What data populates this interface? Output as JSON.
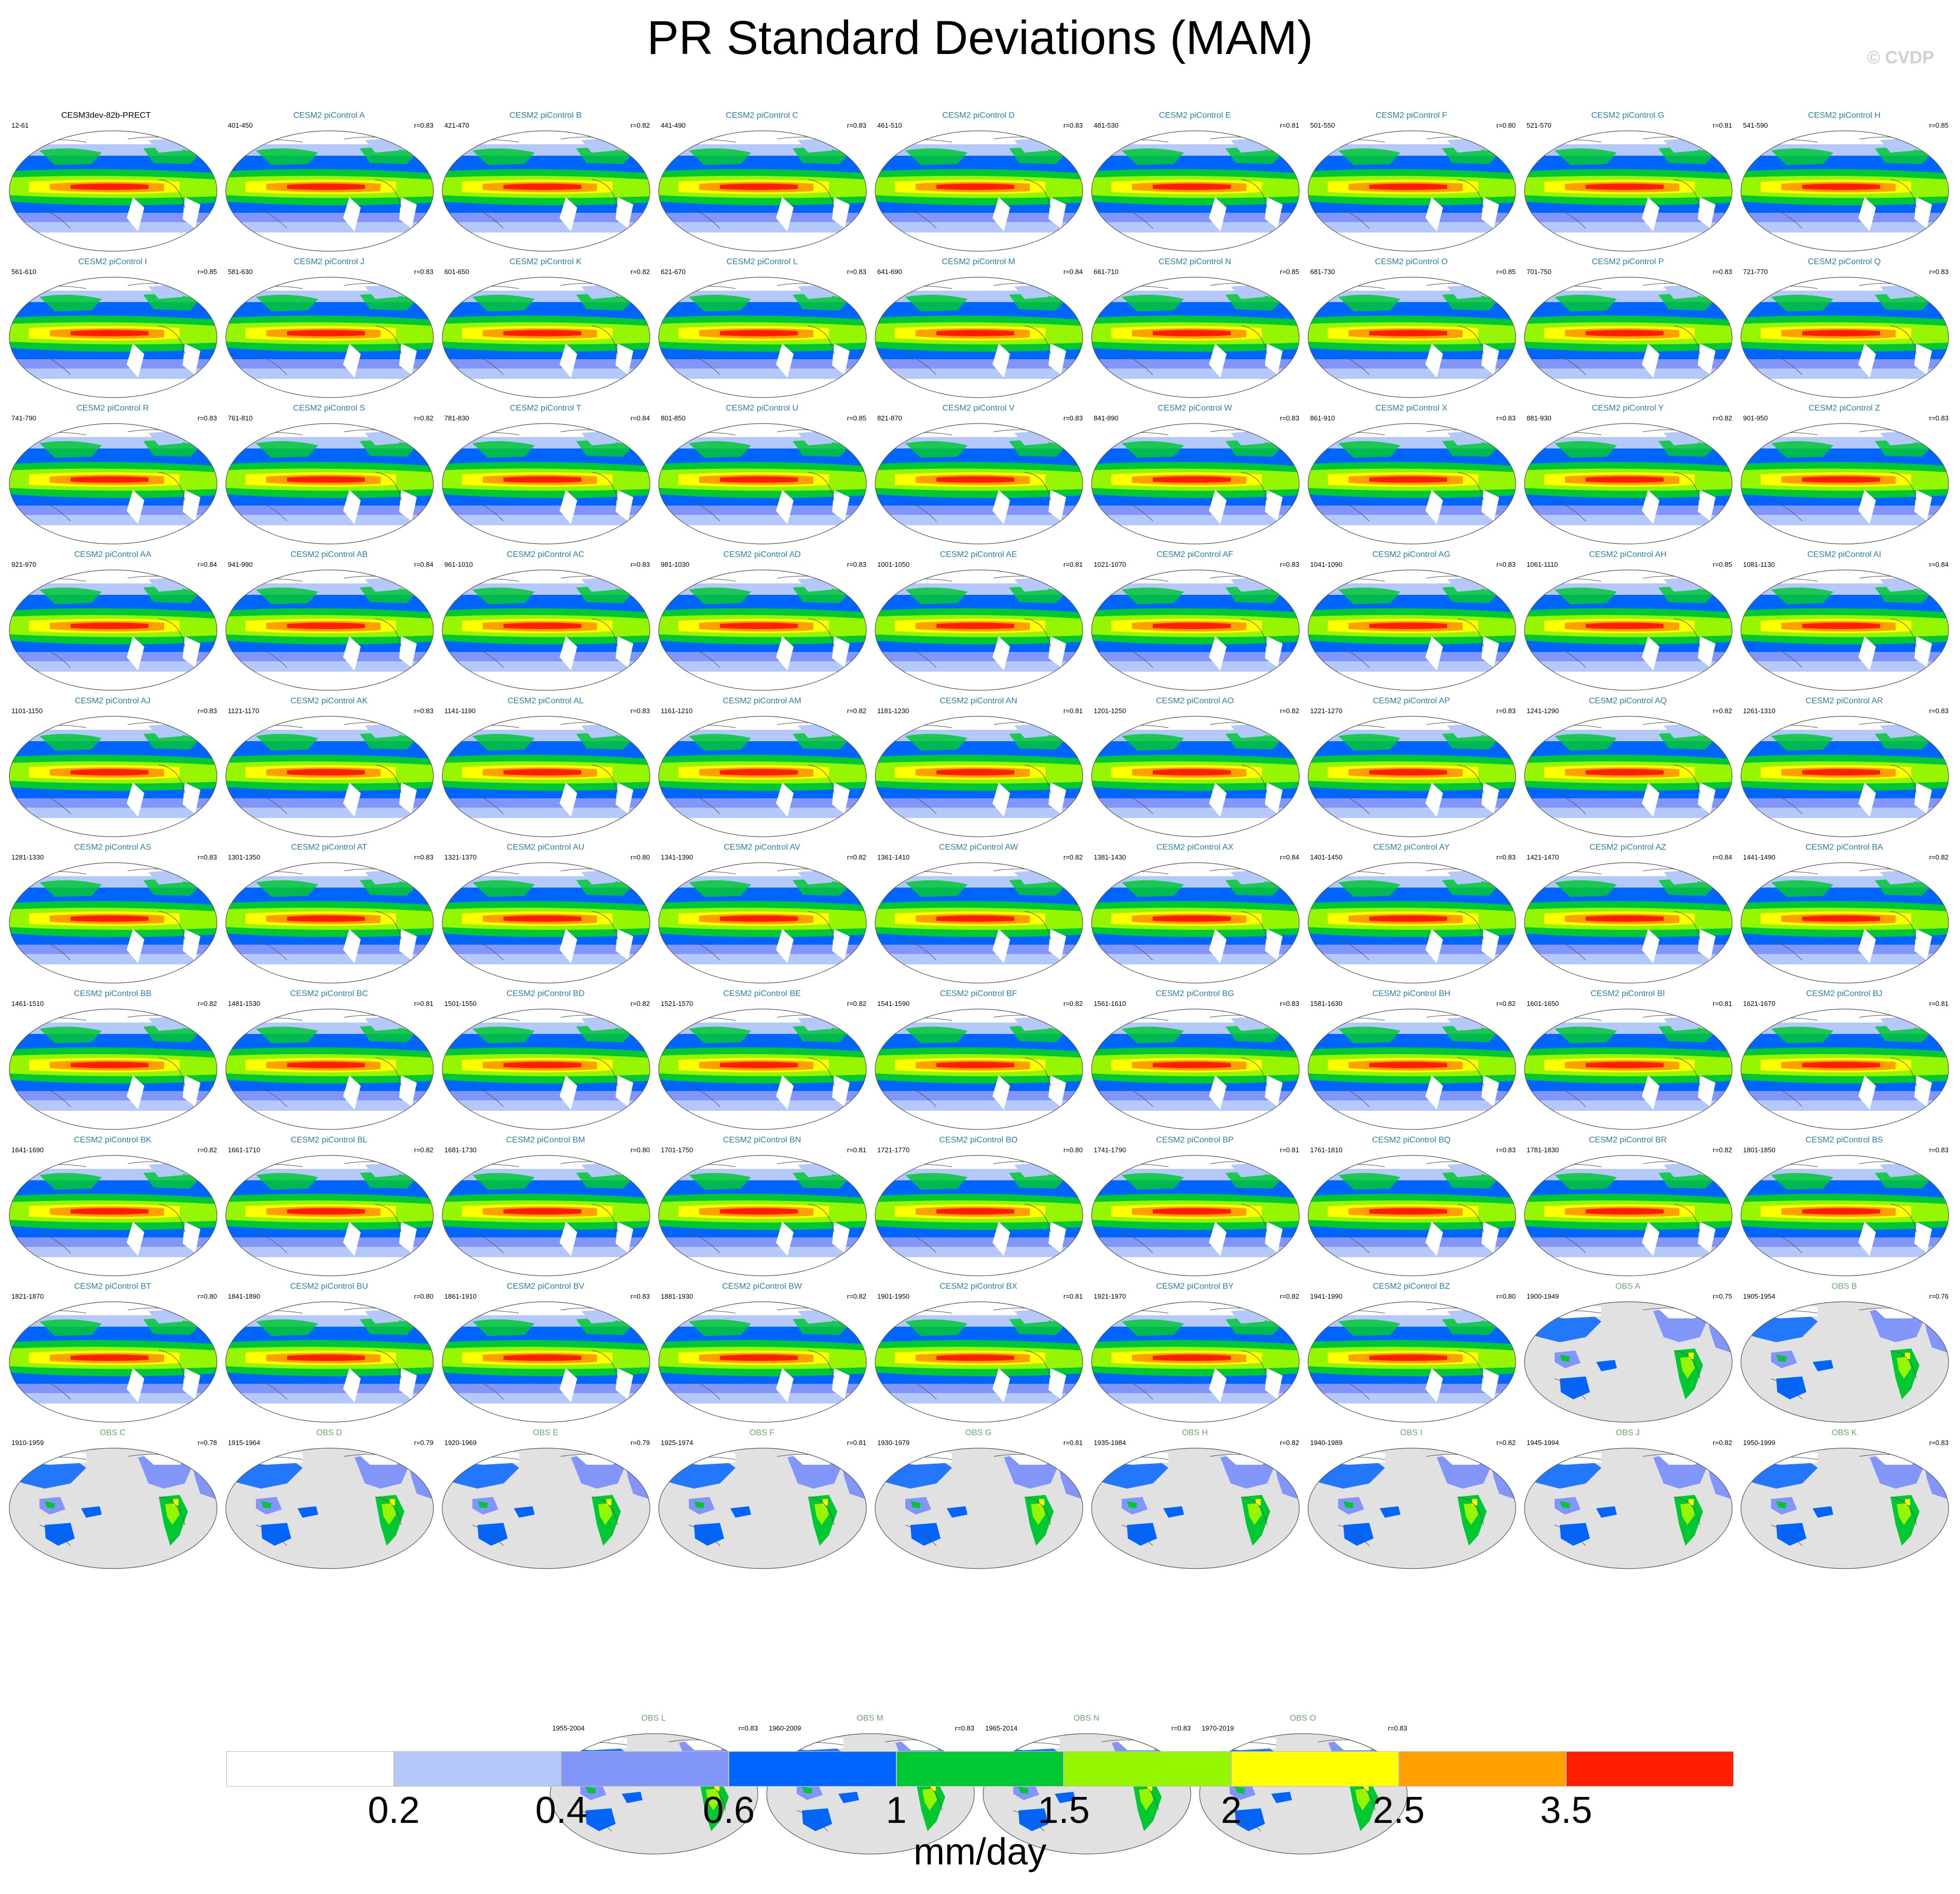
{
  "title": "PR Standard Deviations (MAM)",
  "copyright": "© CVDP",
  "chart_data": {
    "type": "heatmap",
    "title": "PR Standard Deviations (MAM)",
    "units": "mm/day",
    "colorbar": {
      "levels": [
        "0.2",
        "0.4",
        "0.6",
        "1",
        "1.5",
        "2",
        "2.5",
        "3.5"
      ],
      "colors": [
        "#ffffff",
        "#b4c8fa",
        "#8296fa",
        "#0064ff",
        "#00c832",
        "#96f500",
        "#ffff00",
        "#ffa000",
        "#ff1e00"
      ]
    },
    "panels": [
      {
        "title": "CESM3dev-82b-PRECT",
        "years": "12-61",
        "r": "",
        "kind": "base"
      },
      {
        "title": "CESM2 piControl A",
        "years": "401-450",
        "r": "r=0.83",
        "kind": "model"
      },
      {
        "title": "CESM2 piControl B",
        "years": "421-470",
        "r": "r=0.82",
        "kind": "model"
      },
      {
        "title": "CESM2 piControl C",
        "years": "441-490",
        "r": "r=0.83",
        "kind": "model"
      },
      {
        "title": "CESM2 piControl D",
        "years": "461-510",
        "r": "r=0.83",
        "kind": "model"
      },
      {
        "title": "CESM2 piControl E",
        "years": "481-530",
        "r": "r=0.81",
        "kind": "model"
      },
      {
        "title": "CESM2 piControl F",
        "years": "501-550",
        "r": "r=0.80",
        "kind": "model"
      },
      {
        "title": "CESM2 piControl G",
        "years": "521-570",
        "r": "r=0.81",
        "kind": "model"
      },
      {
        "title": "CESM2 piControl H",
        "years": "541-590",
        "r": "r=0.85",
        "kind": "model"
      },
      {
        "title": "CESM2 piControl I",
        "years": "561-610",
        "r": "r=0.85",
        "kind": "model"
      },
      {
        "title": "CESM2 piControl J",
        "years": "581-630",
        "r": "r=0.83",
        "kind": "model"
      },
      {
        "title": "CESM2 piControl K",
        "years": "601-650",
        "r": "r=0.82",
        "kind": "model"
      },
      {
        "title": "CESM2 piControl L",
        "years": "621-670",
        "r": "r=0.83",
        "kind": "model"
      },
      {
        "title": "CESM2 piControl M",
        "years": "641-690",
        "r": "r=0.84",
        "kind": "model"
      },
      {
        "title": "CESM2 piControl N",
        "years": "661-710",
        "r": "r=0.85",
        "kind": "model"
      },
      {
        "title": "CESM2 piControl O",
        "years": "681-730",
        "r": "r=0.85",
        "kind": "model"
      },
      {
        "title": "CESM2 piControl P",
        "years": "701-750",
        "r": "r=0.83",
        "kind": "model"
      },
      {
        "title": "CESM2 piControl Q",
        "years": "721-770",
        "r": "r=0.83",
        "kind": "model"
      },
      {
        "title": "CESM2 piControl R",
        "years": "741-790",
        "r": "r=0.83",
        "kind": "model"
      },
      {
        "title": "CESM2 piControl S",
        "years": "761-810",
        "r": "r=0.82",
        "kind": "model"
      },
      {
        "title": "CESM2 piControl T",
        "years": "781-830",
        "r": "r=0.84",
        "kind": "model"
      },
      {
        "title": "CESM2 piControl U",
        "years": "801-850",
        "r": "r=0.85",
        "kind": "model"
      },
      {
        "title": "CESM2 piControl V",
        "years": "821-870",
        "r": "r=0.83",
        "kind": "model"
      },
      {
        "title": "CESM2 piControl W",
        "years": "841-890",
        "r": "r=0.83",
        "kind": "model"
      },
      {
        "title": "CESM2 piControl X",
        "years": "861-910",
        "r": "r=0.83",
        "kind": "model"
      },
      {
        "title": "CESM2 piControl Y",
        "years": "881-930",
        "r": "r=0.82",
        "kind": "model"
      },
      {
        "title": "CESM2 piControl Z",
        "years": "901-950",
        "r": "r=0.83",
        "kind": "model"
      },
      {
        "title": "CESM2 piControl AA",
        "years": "921-970",
        "r": "r=0.84",
        "kind": "model"
      },
      {
        "title": "CESM2 piControl AB",
        "years": "941-990",
        "r": "r=0.84",
        "kind": "model"
      },
      {
        "title": "CESM2 piControl AC",
        "years": "961-1010",
        "r": "r=0.83",
        "kind": "model"
      },
      {
        "title": "CESM2 piControl AD",
        "years": "981-1030",
        "r": "r=0.83",
        "kind": "model"
      },
      {
        "title": "CESM2 piControl AE",
        "years": "1001-1050",
        "r": "r=0.81",
        "kind": "model"
      },
      {
        "title": "CESM2 piControl AF",
        "years": "1021-1070",
        "r": "r=0.83",
        "kind": "model"
      },
      {
        "title": "CESM2 piControl AG",
        "years": "1041-1090",
        "r": "r=0.83",
        "kind": "model"
      },
      {
        "title": "CESM2 piControl AH",
        "years": "1061-1110",
        "r": "r=0.85",
        "kind": "model"
      },
      {
        "title": "CESM2 piControl AI",
        "years": "1081-1130",
        "r": "r=0.84",
        "kind": "model"
      },
      {
        "title": "CESM2 piControl AJ",
        "years": "1101-1150",
        "r": "r=0.83",
        "kind": "model"
      },
      {
        "title": "CESM2 piControl AK",
        "years": "1121-1170",
        "r": "r=0.83",
        "kind": "model"
      },
      {
        "title": "CESM2 piControl AL",
        "years": "1141-1190",
        "r": "r=0.83",
        "kind": "model"
      },
      {
        "title": "CESM2 piControl AM",
        "years": "1161-1210",
        "r": "r=0.82",
        "kind": "model"
      },
      {
        "title": "CESM2 piControl AN",
        "years": "1181-1230",
        "r": "r=0.81",
        "kind": "model"
      },
      {
        "title": "CESM2 piControl AO",
        "years": "1201-1250",
        "r": "r=0.82",
        "kind": "model"
      },
      {
        "title": "CESM2 piControl AP",
        "years": "1221-1270",
        "r": "r=0.83",
        "kind": "model"
      },
      {
        "title": "CESM2 piControl AQ",
        "years": "1241-1290",
        "r": "r=0.82",
        "kind": "model"
      },
      {
        "title": "CESM2 piControl AR",
        "years": "1261-1310",
        "r": "r=0.83",
        "kind": "model"
      },
      {
        "title": "CESM2 piControl AS",
        "years": "1281-1330",
        "r": "r=0.83",
        "kind": "model"
      },
      {
        "title": "CESM2 piControl AT",
        "years": "1301-1350",
        "r": "r=0.83",
        "kind": "model"
      },
      {
        "title": "CESM2 piControl AU",
        "years": "1321-1370",
        "r": "r=0.80",
        "kind": "model"
      },
      {
        "title": "CESM2 piControl AV",
        "years": "1341-1390",
        "r": "r=0.82",
        "kind": "model"
      },
      {
        "title": "CESM2 piControl AW",
        "years": "1361-1410",
        "r": "r=0.82",
        "kind": "model"
      },
      {
        "title": "CESM2 piControl AX",
        "years": "1381-1430",
        "r": "r=0.84",
        "kind": "model"
      },
      {
        "title": "CESM2 piControl AY",
        "years": "1401-1450",
        "r": "r=0.83",
        "kind": "model"
      },
      {
        "title": "CESM2 piControl AZ",
        "years": "1421-1470",
        "r": "r=0.84",
        "kind": "model"
      },
      {
        "title": "CESM2 piControl BA",
        "years": "1441-1490",
        "r": "r=0.82",
        "kind": "model"
      },
      {
        "title": "CESM2 piControl BB",
        "years": "1461-1510",
        "r": "r=0.82",
        "kind": "model"
      },
      {
        "title": "CESM2 piControl BC",
        "years": "1481-1530",
        "r": "r=0.81",
        "kind": "model"
      },
      {
        "title": "CESM2 piControl BD",
        "years": "1501-1550",
        "r": "r=0.82",
        "kind": "model"
      },
      {
        "title": "CESM2 piControl BE",
        "years": "1521-1570",
        "r": "r=0.82",
        "kind": "model"
      },
      {
        "title": "CESM2 piControl BF",
        "years": "1541-1590",
        "r": "r=0.82",
        "kind": "model"
      },
      {
        "title": "CESM2 piControl BG",
        "years": "1561-1610",
        "r": "r=0.83",
        "kind": "model"
      },
      {
        "title": "CESM2 piControl BH",
        "years": "1581-1630",
        "r": "r=0.82",
        "kind": "model"
      },
      {
        "title": "CESM2 piControl BI",
        "years": "1601-1650",
        "r": "r=0.81",
        "kind": "model"
      },
      {
        "title": "CESM2 piControl BJ",
        "years": "1621-1670",
        "r": "r=0.81",
        "kind": "model"
      },
      {
        "title": "CESM2 piControl BK",
        "years": "1641-1690",
        "r": "r=0.82",
        "kind": "model"
      },
      {
        "title": "CESM2 piControl BL",
        "years": "1661-1710",
        "r": "r=0.82",
        "kind": "model"
      },
      {
        "title": "CESM2 piControl BM",
        "years": "1681-1730",
        "r": "r=0.80",
        "kind": "model"
      },
      {
        "title": "CESM2 piControl BN",
        "years": "1701-1750",
        "r": "r=0.81",
        "kind": "model"
      },
      {
        "title": "CESM2 piControl BO",
        "years": "1721-1770",
        "r": "r=0.80",
        "kind": "model"
      },
      {
        "title": "CESM2 piControl BP",
        "years": "1741-1790",
        "r": "r=0.81",
        "kind": "model"
      },
      {
        "title": "CESM2 piControl BQ",
        "years": "1761-1810",
        "r": "r=0.83",
        "kind": "model"
      },
      {
        "title": "CESM2 piControl BR",
        "years": "1781-1830",
        "r": "r=0.82",
        "kind": "model"
      },
      {
        "title": "CESM2 piControl BS",
        "years": "1801-1850",
        "r": "r=0.83",
        "kind": "model"
      },
      {
        "title": "CESM2 piControl BT",
        "years": "1821-1870",
        "r": "r=0.80",
        "kind": "model"
      },
      {
        "title": "CESM2 piControl BU",
        "years": "1841-1890",
        "r": "r=0.80",
        "kind": "model"
      },
      {
        "title": "CESM2 piControl BV",
        "years": "1861-1910",
        "r": "r=0.83",
        "kind": "model"
      },
      {
        "title": "CESM2 piControl BW",
        "years": "1881-1930",
        "r": "r=0.82",
        "kind": "model"
      },
      {
        "title": "CESM2 piControl BX",
        "years": "1901-1950",
        "r": "r=0.81",
        "kind": "model"
      },
      {
        "title": "CESM2 piControl BY",
        "years": "1921-1970",
        "r": "r=0.82",
        "kind": "model"
      },
      {
        "title": "CESM2 piControl BZ",
        "years": "1941-1990",
        "r": "r=0.80",
        "kind": "model"
      },
      {
        "title": "OBS A",
        "years": "1900-1949",
        "r": "r=0.75",
        "kind": "obs"
      },
      {
        "title": "OBS B",
        "years": "1905-1954",
        "r": "r=0.76",
        "kind": "obs"
      },
      {
        "title": "OBS C",
        "years": "1910-1959",
        "r": "r=0.78",
        "kind": "obs"
      },
      {
        "title": "OBS D",
        "years": "1915-1964",
        "r": "r=0.79",
        "kind": "obs"
      },
      {
        "title": "OBS E",
        "years": "1920-1969",
        "r": "r=0.79",
        "kind": "obs"
      },
      {
        "title": "OBS F",
        "years": "1925-1974",
        "r": "r=0.81",
        "kind": "obs"
      },
      {
        "title": "OBS G",
        "years": "1930-1979",
        "r": "r=0.81",
        "kind": "obs"
      },
      {
        "title": "OBS H",
        "years": "1935-1984",
        "r": "r=0.82",
        "kind": "obs"
      },
      {
        "title": "OBS I",
        "years": "1940-1989",
        "r": "r=0.82",
        "kind": "obs"
      },
      {
        "title": "OBS J",
        "years": "1945-1994",
        "r": "r=0.82",
        "kind": "obs"
      },
      {
        "title": "OBS K",
        "years": "1950-1999",
        "r": "r=0.83",
        "kind": "obs"
      },
      {
        "title": "OBS L",
        "years": "1955-2004",
        "r": "r=0.83",
        "kind": "obs"
      },
      {
        "title": "OBS M",
        "years": "1960-2009",
        "r": "r=0.83",
        "kind": "obs"
      },
      {
        "title": "OBS N",
        "years": "1965-2014",
        "r": "r=0.83",
        "kind": "obs"
      },
      {
        "title": "OBS O",
        "years": "1970-2019",
        "r": "r=0.83",
        "kind": "obs"
      }
    ]
  }
}
